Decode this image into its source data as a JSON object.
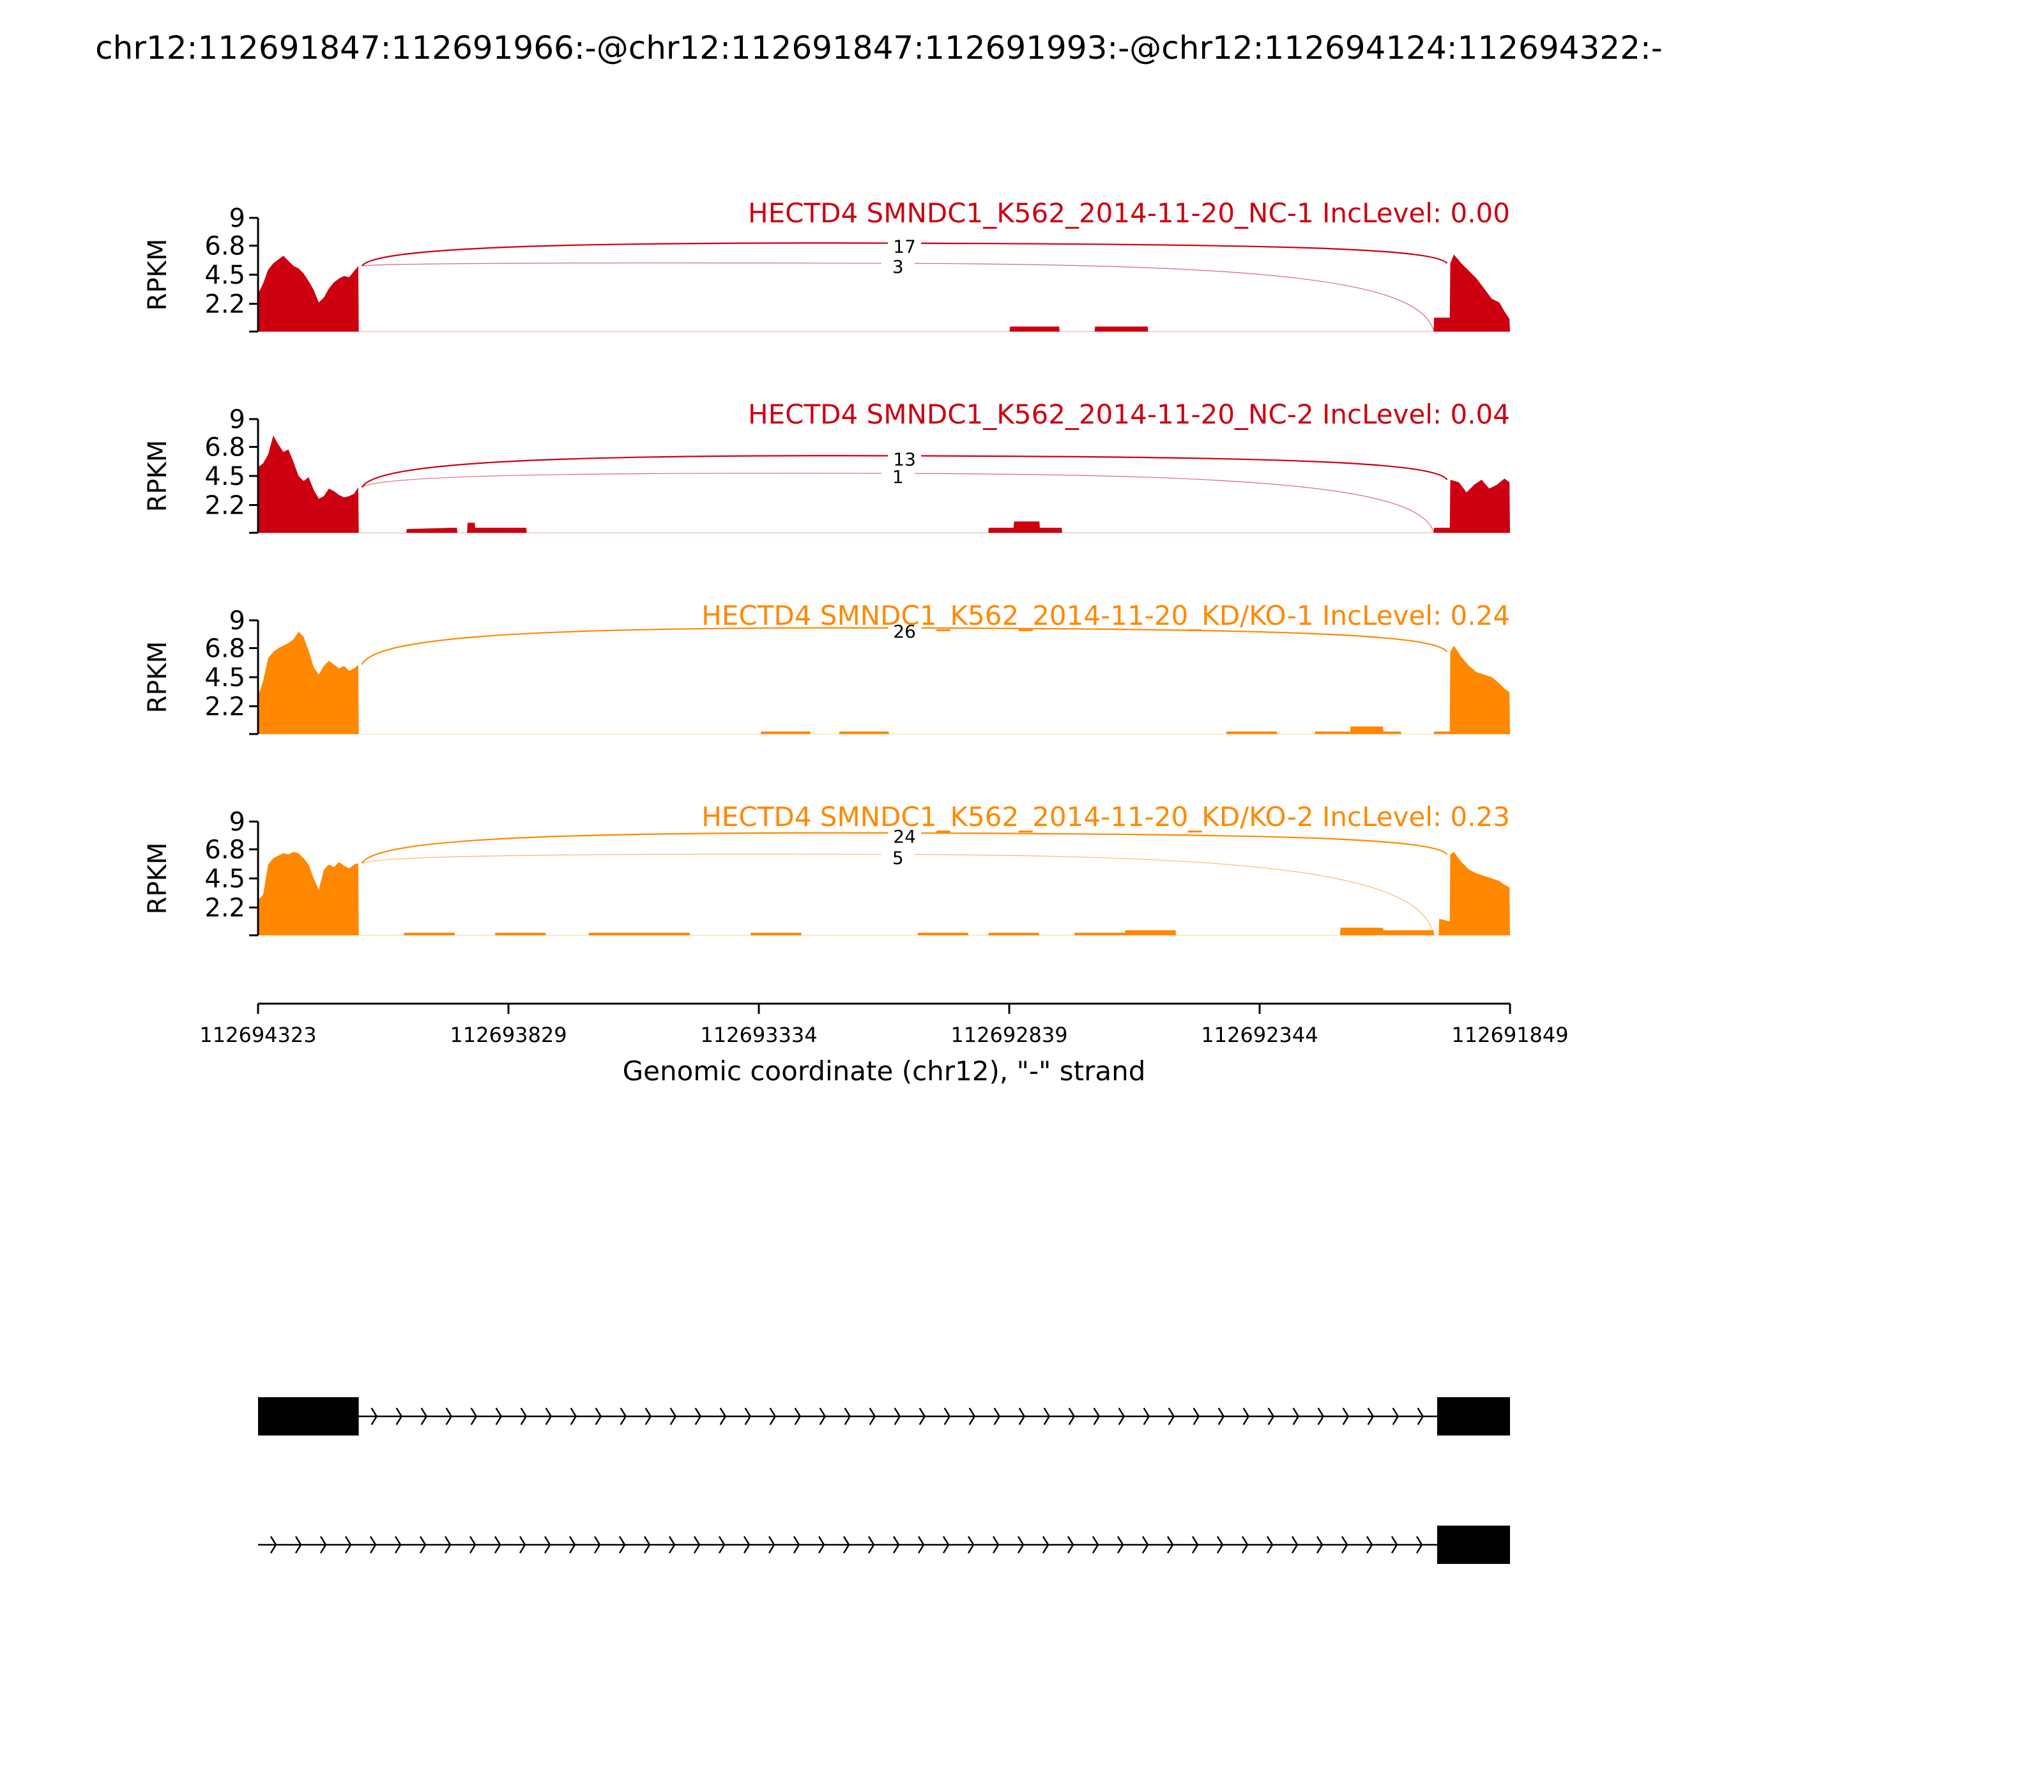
{
  "title": "chr12:112691847:112691966:-@chr12:112691847:112691993:-@chr12:112694124:112694322:-",
  "colors": {
    "nc": "#cc0011",
    "kd": "#ff8800",
    "axis": "#000000",
    "exon": "#000000"
  },
  "chart_data": {
    "type": "sashimi",
    "ylabel": "RPKM",
    "y_ticks": [
      "9",
      "6.8",
      "4.5",
      "2.2"
    ],
    "ylim": [
      0,
      9
    ],
    "xlabel": "Genomic coordinate (chr12), \"-\" strand",
    "x_ticks": [
      "112694323",
      "112693829",
      "112693334",
      "112692839",
      "112692344",
      "112691849"
    ],
    "x_range": [
      112694323,
      112691849
    ],
    "tracks": [
      {
        "label": "HECTD4 SMNDC1_K562_2014-11-20_NC-1 IncLevel: 0.00",
        "group": "nc",
        "coverage": [
          [
            112694323,
            3.0
          ],
          [
            112694313,
            3.8
          ],
          [
            112694303,
            4.9
          ],
          [
            112694293,
            5.4
          ],
          [
            112694283,
            5.7
          ],
          [
            112694273,
            6.0
          ],
          [
            112694263,
            5.6
          ],
          [
            112694253,
            5.2
          ],
          [
            112694243,
            5.0
          ],
          [
            112694233,
            4.6
          ],
          [
            112694223,
            4.0
          ],
          [
            112694213,
            3.3
          ],
          [
            112694203,
            2.3
          ],
          [
            112694193,
            2.7
          ],
          [
            112694183,
            3.4
          ],
          [
            112694173,
            3.9
          ],
          [
            112694163,
            4.2
          ],
          [
            112694153,
            4.4
          ],
          [
            112694143,
            4.3
          ],
          [
            112694133,
            4.8
          ],
          [
            112694125,
            5.2
          ],
          [
            112694124,
            0
          ],
          [
            112692838,
            0
          ],
          [
            112692837,
            0.4
          ],
          [
            112692740,
            0.4
          ],
          [
            112692739,
            0
          ],
          [
            112692670,
            0
          ],
          [
            112692669,
            0.4
          ],
          [
            112692565,
            0.4
          ],
          [
            112692564,
            0
          ],
          [
            112692000,
            0
          ],
          [
            112691999,
            1.1
          ],
          [
            112691968,
            1.1
          ],
          [
            112691967,
            5.4
          ],
          [
            112691960,
            6.1
          ],
          [
            112691945,
            5.4
          ],
          [
            112691930,
            4.8
          ],
          [
            112691915,
            4.2
          ],
          [
            112691900,
            3.4
          ],
          [
            112691885,
            2.6
          ],
          [
            112691870,
            2.3
          ],
          [
            112691860,
            1.6
          ],
          [
            112691850,
            1.0
          ],
          [
            112691849,
            0
          ]
        ],
        "junctions": [
          {
            "count": "17",
            "from": 112694124,
            "to": 112691967,
            "peak": 7.0
          },
          {
            "count": "3",
            "from": 112694124,
            "to": 112691993,
            "peak": 5.4
          }
        ]
      },
      {
        "label": "HECTD4 SMNDC1_K562_2014-11-20_NC-2 IncLevel: 0.04",
        "group": "nc",
        "coverage": [
          [
            112694323,
            5.2
          ],
          [
            112694313,
            5.5
          ],
          [
            112694303,
            6.2
          ],
          [
            112694293,
            7.7
          ],
          [
            112694283,
            7.0
          ],
          [
            112694273,
            6.4
          ],
          [
            112694263,
            6.6
          ],
          [
            112694253,
            5.6
          ],
          [
            112694243,
            4.5
          ],
          [
            112694233,
            4.1
          ],
          [
            112694223,
            4.4
          ],
          [
            112694213,
            3.4
          ],
          [
            112694203,
            2.7
          ],
          [
            112694193,
            2.9
          ],
          [
            112694183,
            3.5
          ],
          [
            112694173,
            3.3
          ],
          [
            112694163,
            3.0
          ],
          [
            112694153,
            2.8
          ],
          [
            112694143,
            2.9
          ],
          [
            112694133,
            3.1
          ],
          [
            112694125,
            3.6
          ],
          [
            112694124,
            0
          ],
          [
            112694030,
            0
          ],
          [
            112694029,
            0.3
          ],
          [
            112693940,
            0.4
          ],
          [
            112693930,
            0.4
          ],
          [
            112693929,
            0
          ],
          [
            112693910,
            0
          ],
          [
            112693909,
            0.8
          ],
          [
            112693895,
            0.8
          ],
          [
            112693894,
            0.4
          ],
          [
            112693793,
            0.4
          ],
          [
            112693792,
            0
          ],
          [
            112692880,
            0
          ],
          [
            112692879,
            0.4
          ],
          [
            112692830,
            0.4
          ],
          [
            112692829,
            0.9
          ],
          [
            112692779,
            0.9
          ],
          [
            112692778,
            0.4
          ],
          [
            112692735,
            0.4
          ],
          [
            112692734,
            0
          ],
          [
            112692000,
            0
          ],
          [
            112691999,
            0.4
          ],
          [
            112691968,
            0.4
          ],
          [
            112691967,
            4.2
          ],
          [
            112691950,
            4.0
          ],
          [
            112691935,
            3.2
          ],
          [
            112691920,
            3.8
          ],
          [
            112691905,
            4.2
          ],
          [
            112691890,
            3.5
          ],
          [
            112691875,
            3.8
          ],
          [
            112691860,
            4.3
          ],
          [
            112691850,
            4.0
          ],
          [
            112691849,
            0
          ]
        ],
        "junctions": [
          {
            "count": "13",
            "from": 112694124,
            "to": 112691967,
            "peak": 6.1
          },
          {
            "count": "1",
            "from": 112694124,
            "to": 112691993,
            "peak": 4.7
          }
        ]
      },
      {
        "label": "HECTD4 SMNDC1_K562_2014-11-20_KD/KO-1 IncLevel: 0.24",
        "group": "kd",
        "coverage": [
          [
            112694323,
            3.0
          ],
          [
            112694313,
            4.2
          ],
          [
            112694303,
            6.0
          ],
          [
            112694293,
            6.5
          ],
          [
            112694283,
            6.8
          ],
          [
            112694273,
            7.0
          ],
          [
            112694263,
            7.2
          ],
          [
            112694253,
            7.5
          ],
          [
            112694243,
            8.1
          ],
          [
            112694233,
            7.7
          ],
          [
            112694223,
            6.6
          ],
          [
            112694213,
            5.3
          ],
          [
            112694203,
            4.7
          ],
          [
            112694193,
            5.4
          ],
          [
            112694183,
            5.8
          ],
          [
            112694173,
            5.5
          ],
          [
            112694163,
            5.2
          ],
          [
            112694153,
            5.4
          ],
          [
            112694143,
            5.0
          ],
          [
            112694133,
            5.2
          ],
          [
            112694125,
            5.5
          ],
          [
            112694124,
            0
          ],
          [
            112693330,
            0
          ],
          [
            112693329,
            0.2
          ],
          [
            112693232,
            0.2
          ],
          [
            112693231,
            0
          ],
          [
            112693175,
            0
          ],
          [
            112693174,
            0.2
          ],
          [
            112693077,
            0.2
          ],
          [
            112693076,
            0
          ],
          [
            112692410,
            0
          ],
          [
            112692409,
            0.2
          ],
          [
            112692310,
            0.2
          ],
          [
            112692309,
            0
          ],
          [
            112692235,
            0
          ],
          [
            112692234,
            0.2
          ],
          [
            112692165,
            0.2
          ],
          [
            112692164,
            0.6
          ],
          [
            112692100,
            0.6
          ],
          [
            112692099,
            0.2
          ],
          [
            112692065,
            0.2
          ],
          [
            112692064,
            0
          ],
          [
            112692000,
            0
          ],
          [
            112691999,
            0.2
          ],
          [
            112691968,
            0.2
          ],
          [
            112691967,
            6.5
          ],
          [
            112691960,
            7.0
          ],
          [
            112691945,
            6.1
          ],
          [
            112691930,
            5.4
          ],
          [
            112691915,
            4.9
          ],
          [
            112691900,
            4.7
          ],
          [
            112691885,
            4.5
          ],
          [
            112691870,
            4.0
          ],
          [
            112691860,
            3.6
          ],
          [
            112691850,
            3.3
          ],
          [
            112691849,
            0
          ]
        ],
        "junctions": [
          {
            "count": "26",
            "from": 112694124,
            "to": 112691967,
            "peak": 8.4
          }
        ]
      },
      {
        "label": "HECTD4 SMNDC1_K562_2014-11-20_KD/KO-2 IncLevel: 0.23",
        "group": "kd",
        "coverage": [
          [
            112694323,
            2.8
          ],
          [
            112694313,
            3.2
          ],
          [
            112694303,
            5.6
          ],
          [
            112694293,
            6.1
          ],
          [
            112694283,
            6.3
          ],
          [
            112694273,
            6.5
          ],
          [
            112694263,
            6.4
          ],
          [
            112694253,
            6.6
          ],
          [
            112694243,
            6.5
          ],
          [
            112694233,
            6.1
          ],
          [
            112694223,
            5.6
          ],
          [
            112694213,
            4.5
          ],
          [
            112694203,
            3.6
          ],
          [
            112694193,
            5.2
          ],
          [
            112694183,
            5.6
          ],
          [
            112694173,
            5.4
          ],
          [
            112694163,
            5.8
          ],
          [
            112694153,
            5.5
          ],
          [
            112694143,
            5.3
          ],
          [
            112694133,
            5.6
          ],
          [
            112694125,
            5.7
          ],
          [
            112694124,
            0
          ],
          [
            112694035,
            0
          ],
          [
            112694034,
            0.2
          ],
          [
            112693935,
            0.2
          ],
          [
            112693934,
            0
          ],
          [
            112693855,
            0
          ],
          [
            112693854,
            0.2
          ],
          [
            112693755,
            0.2
          ],
          [
            112693754,
            0
          ],
          [
            112693670,
            0
          ],
          [
            112693669,
            0.2
          ],
          [
            112693470,
            0.2
          ],
          [
            112693469,
            0
          ],
          [
            112693350,
            0
          ],
          [
            112693349,
            0.2
          ],
          [
            112693250,
            0.2
          ],
          [
            112693249,
            0
          ],
          [
            112693020,
            0
          ],
          [
            112693019,
            0.2
          ],
          [
            112692920,
            0.2
          ],
          [
            112692919,
            0
          ],
          [
            112692880,
            0
          ],
          [
            112692879,
            0.2
          ],
          [
            112692780,
            0.2
          ],
          [
            112692779,
            0
          ],
          [
            112692710,
            0
          ],
          [
            112692709,
            0.2
          ],
          [
            112692610,
            0.2
          ],
          [
            112692609,
            0.4
          ],
          [
            112692510,
            0.4
          ],
          [
            112692509,
            0
          ],
          [
            112692185,
            0
          ],
          [
            112692184,
            0.6
          ],
          [
            112692100,
            0.6
          ],
          [
            112692099,
            0.4
          ],
          [
            112692000,
            0.4
          ],
          [
            112691999,
            0
          ],
          [
            112691990,
            0
          ],
          [
            112691989,
            1.3
          ],
          [
            112691968,
            1.1
          ],
          [
            112691967,
            6.4
          ],
          [
            112691960,
            6.6
          ],
          [
            112691945,
            5.8
          ],
          [
            112691930,
            5.2
          ],
          [
            112691915,
            4.9
          ],
          [
            112691900,
            4.7
          ],
          [
            112691885,
            4.5
          ],
          [
            112691870,
            4.3
          ],
          [
            112691860,
            4.0
          ],
          [
            112691850,
            3.8
          ],
          [
            112691849,
            0
          ]
        ],
        "junctions": [
          {
            "count": "24",
            "from": 112694124,
            "to": 112691967,
            "peak": 8.1
          },
          {
            "count": "5",
            "from": 112694124,
            "to": 112691993,
            "peak": 6.4
          }
        ]
      }
    ],
    "transcripts": [
      {
        "exons": [
          [
            112694323,
            112694124
          ],
          [
            112691993,
            112691849
          ]
        ]
      },
      {
        "exons": [
          [
            112691993,
            112691849
          ]
        ],
        "intron_start": 112694323
      }
    ]
  }
}
